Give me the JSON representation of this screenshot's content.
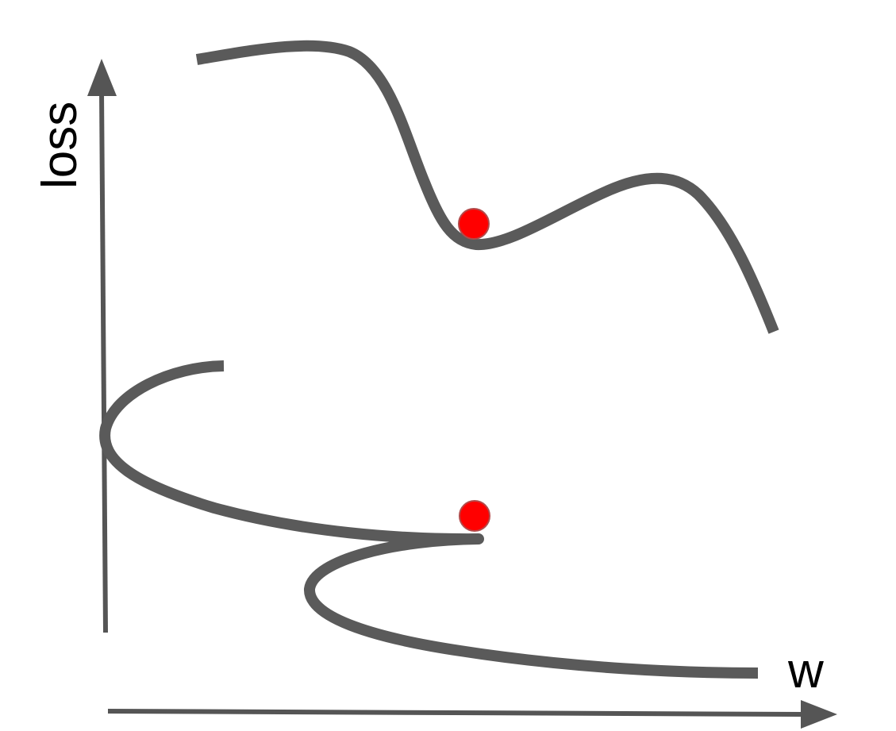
{
  "diagram": {
    "y_axis_label": "loss",
    "x_axis_label": "w",
    "colors": {
      "axis": "#555555",
      "curve": "#5a5a5a",
      "marker_fill": "#ff0000",
      "marker_stroke": "#b34a4a",
      "text": "#000000"
    }
  }
}
